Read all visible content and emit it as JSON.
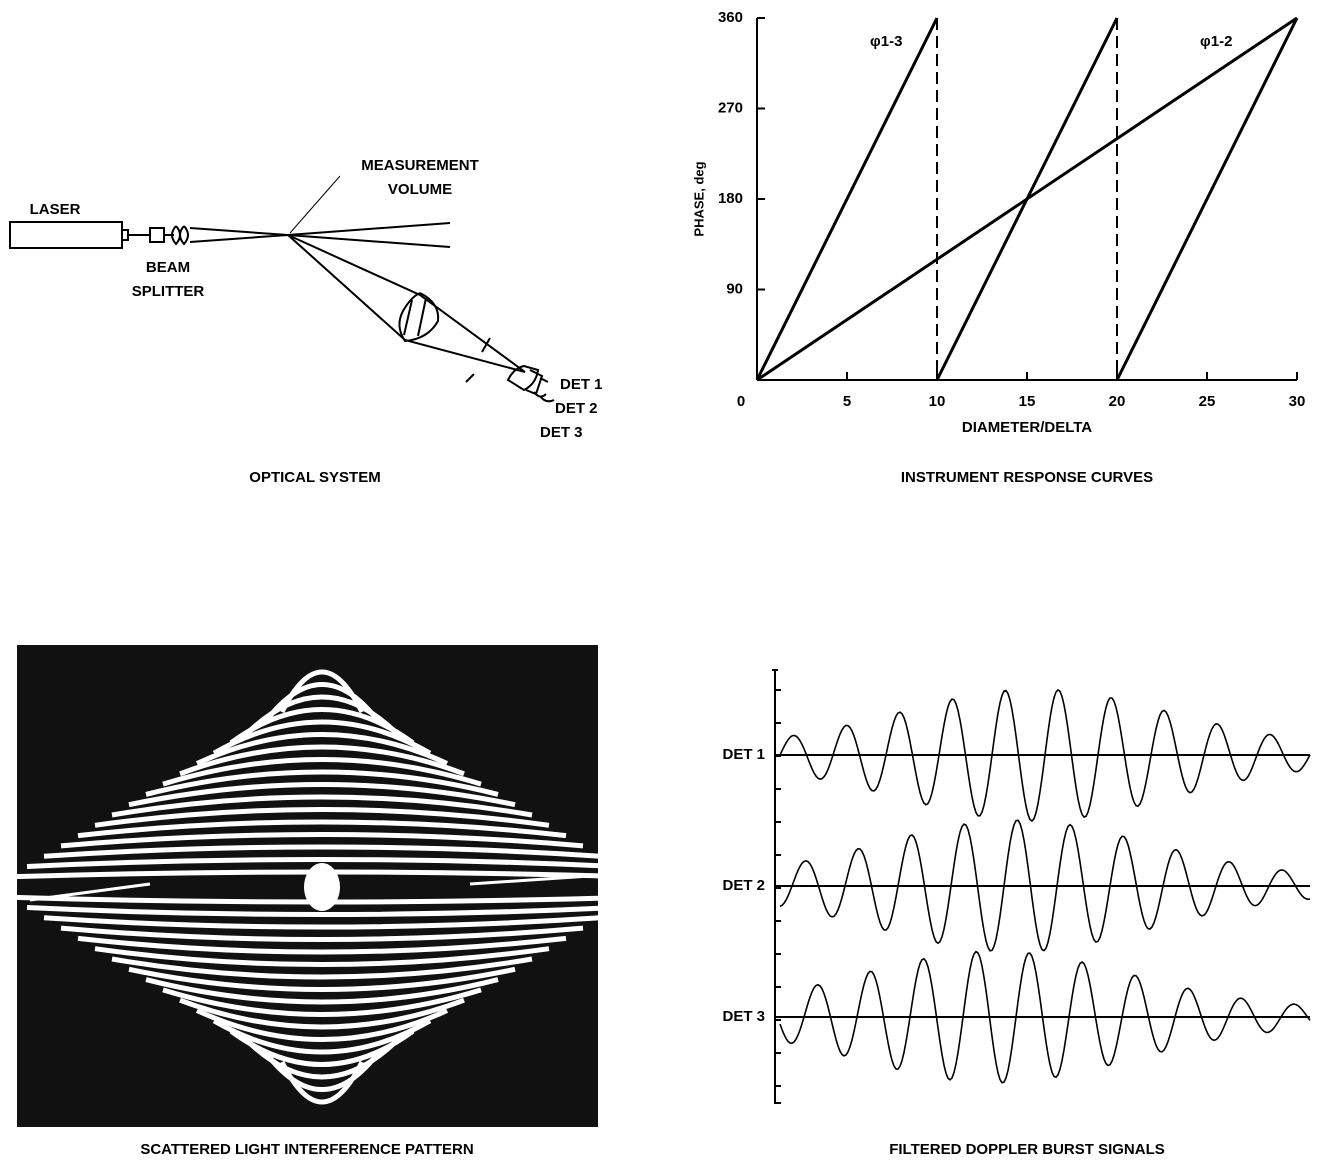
{
  "optical_system": {
    "laser": "LASER",
    "beam_splitter": [
      "BEAM",
      "SPLITTER"
    ],
    "measurement_volume": [
      "MEASUREMENT",
      "VOLUME"
    ],
    "detectors": [
      "DET 1",
      "DET 2",
      "DET 3"
    ],
    "caption": "OPTICAL SYSTEM"
  },
  "chart_data": {
    "type": "line",
    "caption": "INSTRUMENT RESPONSE CURVES",
    "x_label": "DIAMETER/DELTA",
    "y_label": "PHASE, deg",
    "series": [
      {
        "name": "φ1-3",
        "color": "#000000",
        "x": [
          0,
          10,
          10,
          10,
          20,
          20,
          20,
          30
        ],
        "values": [
          0,
          360,
          null,
          0,
          360,
          null,
          0,
          360
        ]
      },
      {
        "name": "φ1-2",
        "color": "#000000",
        "x": [
          0,
          30
        ],
        "values": [
          0,
          360
        ]
      }
    ],
    "xlim": [
      0,
      30
    ],
    "xticks": [
      0,
      5,
      10,
      15,
      20,
      25,
      30
    ],
    "ylim": [
      0,
      360
    ],
    "yticks": [
      90,
      180,
      270,
      360
    ],
    "grid": false
  },
  "interference_pattern": {
    "caption": "SCATTERED LIGHT INTERFERENCE PATTERN"
  },
  "doppler_signals": {
    "labels": [
      "DET 1",
      "DET 2",
      "DET 3"
    ],
    "caption": "FILTERED DOPPLER BURST SIGNALS"
  }
}
